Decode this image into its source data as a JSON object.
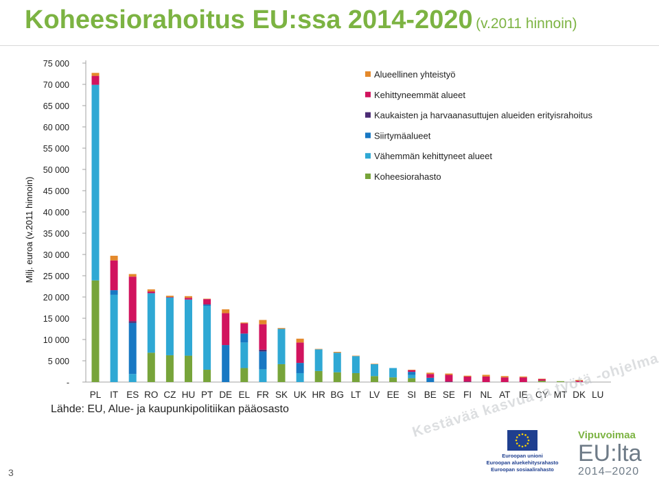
{
  "title": {
    "main": "Koheesiorahoitus EU:ssa 2014-2020",
    "sub": "(v.2011 hinnoin)"
  },
  "source": "Lähde: EU, Alue- ja kaupunkipolitiikan pääosasto",
  "page_number": "3",
  "slogan": "Kestävää kasvua ja työtä -ohjelma",
  "eu_logo": {
    "icon": "eu-flag-icon",
    "lines": [
      "Euroopan unioni",
      "Euroopan aluekehitysrahasto",
      "Euroopan sosiaalirahasto"
    ]
  },
  "program_logo": {
    "title": "Vipuvoimaa",
    "name": "EU:lta",
    "years": "2014–2020"
  },
  "chart_data": {
    "type": "bar",
    "stacked": true,
    "ylabel": "Milj. euroa (v.2011 hinnoin)",
    "ylim": [
      0,
      75000
    ],
    "yticks": [
      0,
      5000,
      10000,
      15000,
      20000,
      25000,
      30000,
      35000,
      40000,
      45000,
      50000,
      55000,
      60000,
      65000,
      70000,
      75000
    ],
    "ytick_labels": [
      "-",
      "5 000",
      "10 000",
      "15 000",
      "20 000",
      "25 000",
      "30 000",
      "35 000",
      "40 000",
      "45 000",
      "50 000",
      "55 000",
      "60 000",
      "65 000",
      "70 000",
      "75 000"
    ],
    "legend_position": "top-right",
    "categories": [
      "PL",
      "IT",
      "ES",
      "RO",
      "CZ",
      "HU",
      "PT",
      "DE",
      "EL",
      "FR",
      "SK",
      "UK",
      "HR",
      "BG",
      "LT",
      "LV",
      "EE",
      "SI",
      "BE",
      "SE",
      "FI",
      "NL",
      "AT",
      "IE",
      "CY",
      "MT",
      "DK",
      "LU"
    ],
    "series": [
      {
        "name": "Koheesiorahasto",
        "color": "#77a43a",
        "values": [
          23900,
          0,
          0,
          6900,
          6300,
          6200,
          2900,
          0,
          3300,
          0,
          4200,
          0,
          2600,
          2300,
          2100,
          1400,
          1100,
          900,
          0,
          0,
          0,
          0,
          0,
          0,
          300,
          200,
          0,
          0
        ]
      },
      {
        "name": "Vähemmän kehittyneet alueet",
        "color": "#2fa8d4",
        "values": [
          46000,
          20500,
          1900,
          14000,
          13600,
          13200,
          15000,
          0,
          6000,
          3000,
          8300,
          2100,
          5100,
          4600,
          4000,
          2800,
          2200,
          800,
          0,
          0,
          0,
          0,
          0,
          0,
          0,
          0,
          0,
          0
        ]
      },
      {
        "name": "Siirtymäalueet",
        "color": "#1878c3",
        "values": [
          0,
          1100,
          12000,
          0,
          0,
          0,
          300,
          8700,
          2100,
          4200,
          0,
          2400,
          0,
          0,
          0,
          0,
          0,
          700,
          1000,
          0,
          0,
          0,
          0,
          0,
          0,
          0,
          0,
          0
        ]
      },
      {
        "name": "Kaukaisten ja harvaanasuttujen alueiden erityisrahoitus",
        "color": "#4a2b74",
        "values": [
          0,
          0,
          400,
          0,
          0,
          0,
          100,
          0,
          0,
          400,
          0,
          0,
          0,
          0,
          0,
          0,
          0,
          0,
          0,
          100,
          100,
          0,
          0,
          0,
          0,
          0,
          0,
          0
        ]
      },
      {
        "name": "Kehittyneemmät alueet",
        "color": "#d1135e",
        "values": [
          2100,
          7000,
          10500,
          400,
          100,
          400,
          1200,
          7500,
          2400,
          6000,
          0,
          4800,
          0,
          0,
          0,
          0,
          0,
          400,
          900,
          1600,
          1200,
          1300,
          1100,
          1100,
          400,
          0,
          300,
          0
        ]
      },
      {
        "name": "Alueellinen yhteistyö",
        "color": "#e4892b",
        "values": [
          700,
          1100,
          600,
          500,
          300,
          400,
          100,
          900,
          200,
          1000,
          200,
          900,
          100,
          200,
          100,
          100,
          0,
          100,
          300,
          300,
          200,
          400,
          300,
          200,
          100,
          0,
          200,
          0
        ]
      }
    ]
  }
}
